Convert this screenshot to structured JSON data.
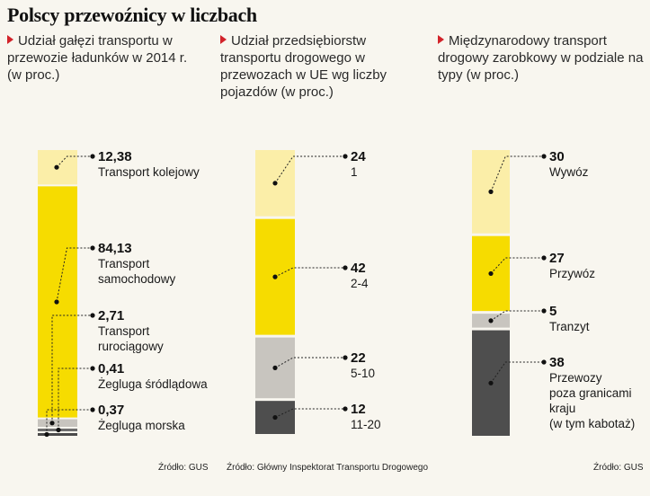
{
  "title": "Polscy przewoźnicy w liczbach",
  "panels": [
    {
      "subtitle": "Udział gałęzi transportu w przewozie ładunków w 2014 r. (w proc.)",
      "source": "Źródło: GUS"
    },
    {
      "subtitle": "Udział przedsiębiorstw transportu drogowego w przewozach w UE wg liczby pojazdów (w proc.)",
      "source": "Źródło: Główny Inspektorat Transportu Drogowego"
    },
    {
      "subtitle": "Międzynarodowy transport drogowy zarobkowy w podziale na typy (w proc.)",
      "source": "Źródło: GUS"
    }
  ],
  "chart_data": [
    {
      "type": "bar",
      "stacked": true,
      "title": "Udział gałęzi transportu w przewozie ładunków w 2014 r. (w proc.)",
      "segments": [
        {
          "label": "Transport kolejowy",
          "value_label": "12,38",
          "value": 12.38,
          "color": "#fbeea8"
        },
        {
          "label": "Transport samochodowy",
          "value_label": "84,13",
          "value": 84.13,
          "color": "#f6dc00"
        },
        {
          "label": "Transport rurociągowy",
          "value_label": "2,71",
          "value": 2.71,
          "color": "#c8c5bf"
        },
        {
          "label": "Żegluga śródlądowa",
          "value_label": "0,41",
          "value": 0.41,
          "color": "#6e6e6e"
        },
        {
          "label": "Żegluga morska",
          "value_label": "0,37",
          "value": 0.37,
          "color": "#4a4a4a"
        }
      ]
    },
    {
      "type": "bar",
      "stacked": true,
      "title": "Udział przedsiębiorstw transportu drogowego w przewozach w UE wg liczby pojazdów (w proc.)",
      "segments": [
        {
          "label": "1",
          "value_label": "24",
          "value": 24,
          "color": "#fbeea8"
        },
        {
          "label": "2-4",
          "value_label": "42",
          "value": 42,
          "color": "#f6dc00"
        },
        {
          "label": "5-10",
          "value_label": "22",
          "value": 22,
          "color": "#c8c5bf"
        },
        {
          "label": "11-20",
          "value_label": "12",
          "value": 12,
          "color": "#4e4e4e"
        }
      ]
    },
    {
      "type": "bar",
      "stacked": true,
      "title": "Międzynarodowy transport drogowy zarobkowy w podziale na typy (w proc.)",
      "segments": [
        {
          "label": "Wywóz",
          "value_label": "30",
          "value": 30,
          "color": "#fbeea8"
        },
        {
          "label": "Przywóz",
          "value_label": "27",
          "value": 27,
          "color": "#f6dc00"
        },
        {
          "label": "Tranzyt",
          "value_label": "5",
          "value": 5,
          "color": "#c8c5bf"
        },
        {
          "label": "Przewozy poza granicami kraju (w tym kabotaż)",
          "value_label": "38",
          "value": 38,
          "color": "#4e4e4e"
        }
      ]
    }
  ]
}
